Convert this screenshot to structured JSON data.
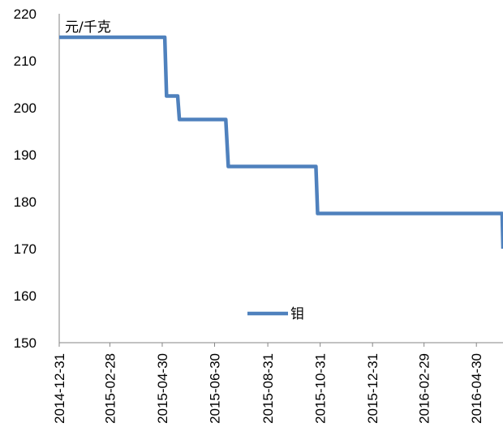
{
  "chart_data": {
    "type": "line",
    "unit_label": "元/千克",
    "ylim": [
      150,
      220
    ],
    "y_ticks": [
      150,
      160,
      170,
      180,
      190,
      200,
      210,
      220
    ],
    "xlim": [
      "2014-12-31",
      "2016-05-31"
    ],
    "x_ticks": [
      "2014-12-31",
      "2015-02-28",
      "2015-04-30",
      "2015-06-30",
      "2015-08-31",
      "2015-10-31",
      "2015-12-31",
      "2016-02-29",
      "2016-04-30"
    ],
    "grid": false,
    "legend": "bottom-center",
    "series": [
      {
        "name": "钼",
        "color": "#4F81BD",
        "points": [
          [
            "2014-12-31",
            215
          ],
          [
            "2015-05-03",
            215
          ],
          [
            "2015-05-05",
            202.5
          ],
          [
            "2015-05-18",
            202.5
          ],
          [
            "2015-05-20",
            197.5
          ],
          [
            "2015-07-13",
            197.5
          ],
          [
            "2015-07-16",
            187.5
          ],
          [
            "2015-10-26",
            187.5
          ],
          [
            "2015-10-28",
            177.5
          ],
          [
            "2016-05-30",
            177.5
          ],
          [
            "2016-05-31",
            170
          ]
        ]
      }
    ]
  }
}
